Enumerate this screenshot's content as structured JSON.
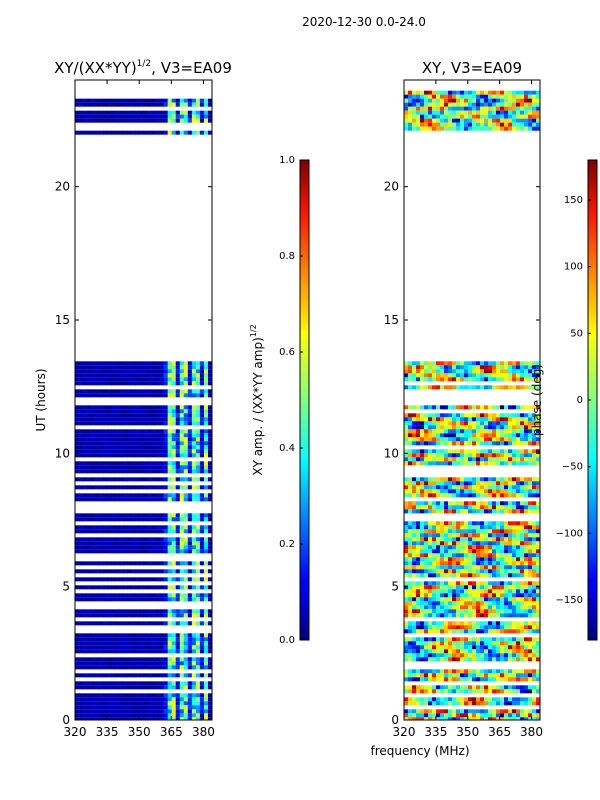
{
  "figure": {
    "suptitle": "2020-12-30 0.0-24.0",
    "xlabel": "frequency (MHz)"
  },
  "chart_data": [
    {
      "type": "heatmap",
      "id": "amp",
      "title": "XY/(XX*YY)",
      "title_sup": "1/2",
      "title_suffix": ", V3=EA09",
      "xlabel": "",
      "ylabel": "UT (hours)",
      "xlim": [
        320,
        384
      ],
      "ylim": [
        0,
        24
      ],
      "xticks": [
        320,
        335,
        350,
        365,
        380
      ],
      "yticks": [
        0,
        5,
        10,
        15,
        20
      ],
      "colorbar": {
        "label": "XY amp. / (XX*YY amp)",
        "label_sup": "1/2",
        "range": [
          0.0,
          1.0
        ],
        "ticks": [
          "0.0",
          "0.2",
          "0.4",
          "0.6",
          "0.8",
          "1.0"
        ],
        "tick_values": [
          0.0,
          0.2,
          0.4,
          0.6,
          0.8,
          1.0
        ]
      },
      "data_bands_hours": [
        [
          0,
          13.6
        ],
        [
          21.95,
          23.6
        ]
      ],
      "gap_hours": [
        [
          13.6,
          21.95
        ]
      ]
    },
    {
      "type": "heatmap",
      "id": "phase",
      "title": "XY, V3=EA09",
      "xlabel": "",
      "ylabel": "",
      "xlim": [
        320,
        384
      ],
      "ylim": [
        0,
        24
      ],
      "xticks": [
        320,
        335,
        350,
        365,
        380
      ],
      "yticks": [
        0,
        5,
        10,
        15,
        20
      ],
      "colorbar": {
        "label": "phase (deg)",
        "range": [
          -180,
          180
        ],
        "ticks": [
          "150",
          "100",
          "50",
          "0",
          "−50",
          "−100",
          "−150"
        ],
        "tick_values": [
          150,
          100,
          50,
          0,
          -50,
          -100,
          -150
        ]
      },
      "data_bands_hours": [
        [
          0,
          13.6
        ],
        [
          21.95,
          23.6
        ]
      ],
      "gap_hours": [
        [
          13.6,
          21.95
        ]
      ]
    }
  ]
}
